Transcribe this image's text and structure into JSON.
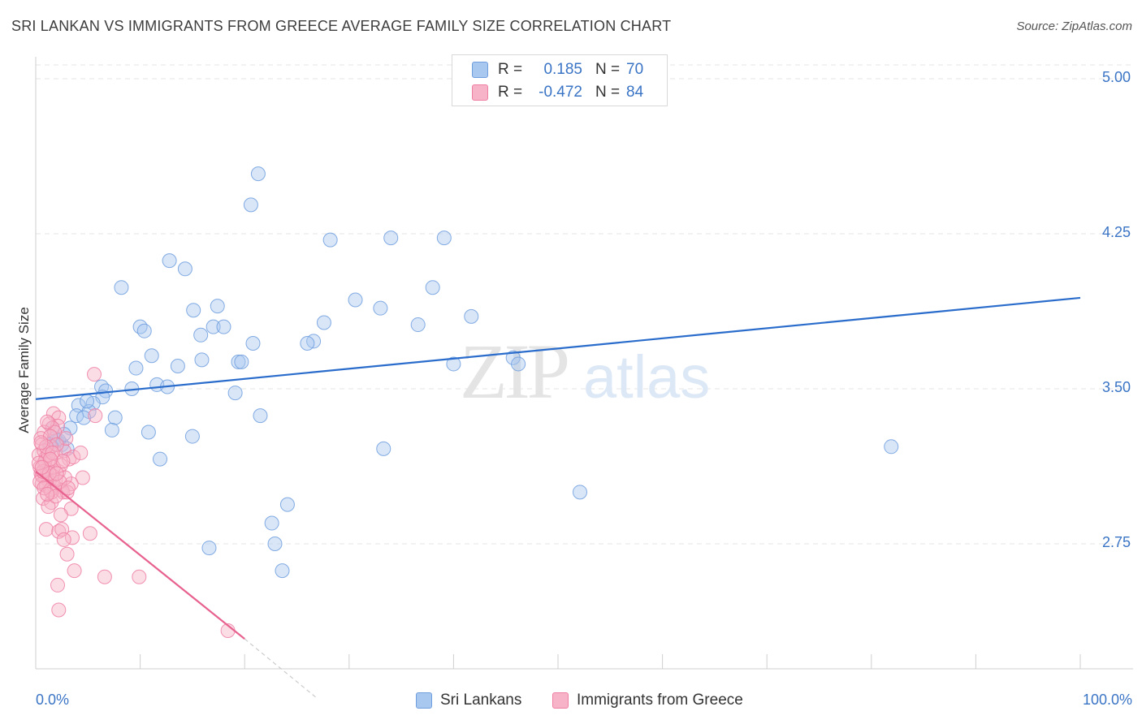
{
  "header": {
    "title": "SRI LANKAN VS IMMIGRANTS FROM GREECE AVERAGE FAMILY SIZE CORRELATION CHART",
    "source": "Source: ZipAtlas.com"
  },
  "watermark": {
    "zip": "ZIP",
    "atlas": "atlas"
  },
  "stats": {
    "r_label": "R =",
    "n_label": "N =",
    "rows": [
      {
        "r": "0.185",
        "n": "70",
        "color": "#a9c8f0"
      },
      {
        "r": "-0.472",
        "n": "84",
        "color": "#f7b3c8"
      }
    ]
  },
  "legend": {
    "items": [
      {
        "label": "Sri Lankans",
        "color": "#a9c8f0"
      },
      {
        "label": "Immigrants from Greece",
        "color": "#f7b3c8"
      }
    ]
  },
  "colors": {
    "blue_fill": "#a9c8f0",
    "blue_stroke": "#6f9ede",
    "blue_line": "#2a6ccb",
    "pink_fill": "#f7b3c8",
    "pink_stroke": "#ee7fa3",
    "pink_line": "#e8628f",
    "axis_text": "#3a74c5"
  },
  "chart_data": {
    "type": "scatter",
    "title": "SRI LANKAN VS IMMIGRANTS FROM GREECE AVERAGE FAMILY SIZE CORRELATION CHART",
    "xlabel": "",
    "ylabel": "Average Family Size",
    "xlim": [
      0,
      100
    ],
    "ylim": [
      2.2,
      5.05
    ],
    "x_tick_labels": [
      "0.0%",
      "100.0%"
    ],
    "y_ticks": [
      2.75,
      3.5,
      4.25,
      5.0
    ],
    "y_tick_labels": [
      "2.75",
      "3.50",
      "4.25",
      "5.00"
    ],
    "grid": "horizontal dashed",
    "legend_position": "bottom-center",
    "series": [
      {
        "name": "Sri Lankans",
        "r": 0.185,
        "n": 70,
        "trend": {
          "x": [
            0,
            100
          ],
          "y": [
            3.45,
            3.94
          ]
        },
        "points": [
          [
            21.3,
            4.54
          ],
          [
            20.6,
            4.39
          ],
          [
            28.2,
            4.22
          ],
          [
            34.0,
            4.23
          ],
          [
            39.1,
            4.23
          ],
          [
            12.8,
            4.12
          ],
          [
            14.3,
            4.08
          ],
          [
            8.2,
            3.99
          ],
          [
            38.0,
            3.99
          ],
          [
            30.6,
            3.93
          ],
          [
            33.0,
            3.89
          ],
          [
            15.1,
            3.88
          ],
          [
            17.4,
            3.9
          ],
          [
            41.7,
            3.85
          ],
          [
            27.6,
            3.82
          ],
          [
            36.6,
            3.81
          ],
          [
            10.0,
            3.8
          ],
          [
            10.4,
            3.78
          ],
          [
            17.0,
            3.8
          ],
          [
            18.0,
            3.8
          ],
          [
            15.8,
            3.76
          ],
          [
            26.6,
            3.73
          ],
          [
            26.0,
            3.72
          ],
          [
            20.8,
            3.72
          ],
          [
            11.1,
            3.66
          ],
          [
            15.9,
            3.64
          ],
          [
            19.4,
            3.63
          ],
          [
            19.7,
            3.63
          ],
          [
            45.7,
            3.65
          ],
          [
            46.2,
            3.62
          ],
          [
            40.0,
            3.62
          ],
          [
            13.6,
            3.61
          ],
          [
            9.6,
            3.6
          ],
          [
            11.6,
            3.52
          ],
          [
            12.6,
            3.51
          ],
          [
            9.2,
            3.5
          ],
          [
            6.3,
            3.51
          ],
          [
            6.7,
            3.49
          ],
          [
            19.1,
            3.48
          ],
          [
            6.4,
            3.46
          ],
          [
            5.5,
            3.43
          ],
          [
            4.1,
            3.42
          ],
          [
            5.1,
            3.39
          ],
          [
            3.9,
            3.37
          ],
          [
            4.6,
            3.36
          ],
          [
            7.6,
            3.36
          ],
          [
            21.5,
            3.37
          ],
          [
            1.6,
            3.31
          ],
          [
            3.3,
            3.31
          ],
          [
            7.3,
            3.3
          ],
          [
            10.8,
            3.29
          ],
          [
            1.8,
            3.26
          ],
          [
            2.0,
            3.25
          ],
          [
            15.0,
            3.27
          ],
          [
            1.3,
            3.23
          ],
          [
            2.5,
            3.23
          ],
          [
            33.3,
            3.21
          ],
          [
            81.9,
            3.22
          ],
          [
            11.9,
            3.16
          ],
          [
            52.1,
            3.0
          ],
          [
            24.1,
            2.94
          ],
          [
            22.6,
            2.85
          ],
          [
            22.9,
            2.75
          ],
          [
            16.6,
            2.73
          ],
          [
            23.6,
            2.62
          ],
          [
            2.2,
            3.25
          ],
          [
            1.5,
            3.22
          ],
          [
            3.0,
            3.21
          ],
          [
            2.7,
            3.28
          ],
          [
            4.9,
            3.44
          ]
        ]
      },
      {
        "name": "Immigrants from Greece",
        "r": -0.472,
        "n": 84,
        "trend": {
          "x": [
            0,
            20
          ],
          "y": [
            3.1,
            2.29
          ]
        },
        "trend_extension": {
          "x": [
            20,
            27
          ],
          "y": [
            2.29,
            2.0
          ]
        },
        "points": [
          [
            5.6,
            3.57
          ],
          [
            1.7,
            3.38
          ],
          [
            2.2,
            3.36
          ],
          [
            1.3,
            3.33
          ],
          [
            2.1,
            3.32
          ],
          [
            1.6,
            3.31
          ],
          [
            0.8,
            3.29
          ],
          [
            1.8,
            3.29
          ],
          [
            0.5,
            3.26
          ],
          [
            0.6,
            3.23
          ],
          [
            1.4,
            3.22
          ],
          [
            1.9,
            3.19
          ],
          [
            2.7,
            3.2
          ],
          [
            0.3,
            3.18
          ],
          [
            1.0,
            3.17
          ],
          [
            3.2,
            3.16
          ],
          [
            1.5,
            3.15
          ],
          [
            0.8,
            3.14
          ],
          [
            0.4,
            3.12
          ],
          [
            1.1,
            3.11
          ],
          [
            2.2,
            3.1
          ],
          [
            0.5,
            3.09
          ],
          [
            1.6,
            3.08
          ],
          [
            0.9,
            3.07
          ],
          [
            4.5,
            3.07
          ],
          [
            1.3,
            3.05
          ],
          [
            0.6,
            3.04
          ],
          [
            3.4,
            3.04
          ],
          [
            1.0,
            3.03
          ],
          [
            1.8,
            3.02
          ],
          [
            2.5,
            3.01
          ],
          [
            2.6,
            3.0
          ],
          [
            3.0,
            3.0
          ],
          [
            0.7,
            2.97
          ],
          [
            1.5,
            2.95
          ],
          [
            1.2,
            2.93
          ],
          [
            3.4,
            2.92
          ],
          [
            2.4,
            2.89
          ],
          [
            1.0,
            2.82
          ],
          [
            2.2,
            2.81
          ],
          [
            2.5,
            2.82
          ],
          [
            5.2,
            2.8
          ],
          [
            3.5,
            2.78
          ],
          [
            2.7,
            2.77
          ],
          [
            3.0,
            2.7
          ],
          [
            3.7,
            2.62
          ],
          [
            6.6,
            2.59
          ],
          [
            9.9,
            2.59
          ],
          [
            2.1,
            2.55
          ],
          [
            2.2,
            2.43
          ],
          [
            18.4,
            2.33
          ],
          [
            5.7,
            3.37
          ],
          [
            1.4,
            3.27
          ],
          [
            0.8,
            3.2
          ],
          [
            2.9,
            3.26
          ],
          [
            1.1,
            3.34
          ],
          [
            0.6,
            3.08
          ],
          [
            1.9,
            3.06
          ],
          [
            1.4,
            3.01
          ],
          [
            2.4,
            3.13
          ],
          [
            0.9,
            3.15
          ],
          [
            1.7,
            3.12
          ],
          [
            0.4,
            3.05
          ],
          [
            3.6,
            3.17
          ],
          [
            2.0,
            3.23
          ],
          [
            1.2,
            3.18
          ],
          [
            0.7,
            3.1
          ],
          [
            1.5,
            3.0
          ],
          [
            2.8,
            3.07
          ],
          [
            1.0,
            3.22
          ],
          [
            1.9,
            2.98
          ],
          [
            0.3,
            3.14
          ],
          [
            4.3,
            3.19
          ],
          [
            1.3,
            3.09
          ],
          [
            2.6,
            3.15
          ],
          [
            0.8,
            3.02
          ],
          [
            1.6,
            3.19
          ],
          [
            2.3,
            3.05
          ],
          [
            1.1,
            2.99
          ],
          [
            0.5,
            3.24
          ],
          [
            3.1,
            3.02
          ],
          [
            2.0,
            3.09
          ],
          [
            1.4,
            3.16
          ],
          [
            0.6,
            3.12
          ]
        ]
      }
    ]
  }
}
